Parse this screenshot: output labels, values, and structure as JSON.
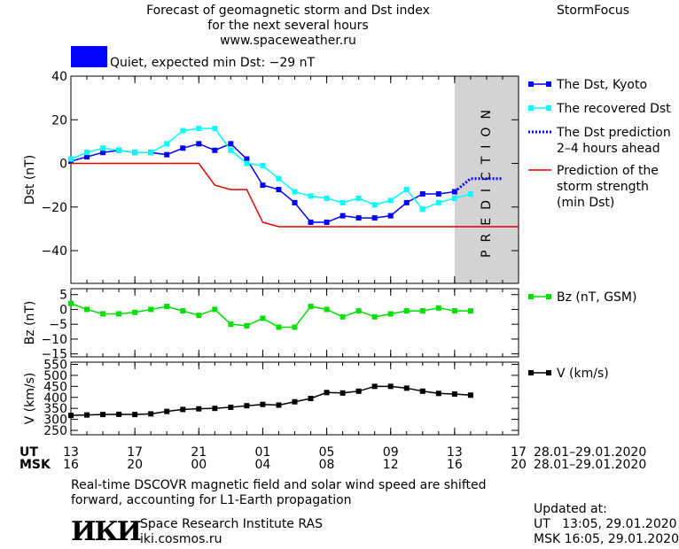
{
  "header": {
    "title_line1": "Forecast of geomagnetic storm and Dst index",
    "title_line2": "for the next several hours",
    "title_line3": "www.spaceweather.ru",
    "brand": "StormFocus",
    "status_text": "Quiet, expected min Dst: −29 nT",
    "status_color": "#0000ff"
  },
  "chart_data": [
    {
      "type": "line",
      "ylabel": "Dst (nT)",
      "ylim": [
        -55,
        40
      ],
      "yticks": [
        "40",
        "20",
        "0",
        "−20",
        "−40"
      ],
      "yticks_values": [
        40,
        20,
        0,
        -20,
        -40
      ],
      "xlim": [
        13,
        41
      ],
      "prediction_band": {
        "from": 37,
        "to": 41,
        "text": "PREDICTION",
        "color": "#d3d3d3"
      },
      "series": [
        {
          "name": "The Dst, Kyoto",
          "color": "#0000ff",
          "marker": "square",
          "x": [
            13,
            14,
            15,
            16,
            17,
            18,
            19,
            20,
            21,
            22,
            23,
            24,
            25,
            26,
            27,
            28,
            29,
            30,
            31,
            32,
            33,
            34,
            35,
            36,
            37
          ],
          "y": [
            1,
            3,
            5,
            6,
            5,
            5,
            4,
            7,
            9,
            6,
            9,
            2,
            -10,
            -12,
            -18,
            -27,
            -27,
            -24,
            -25,
            -25,
            -24,
            -18,
            -14,
            -14,
            -13
          ]
        },
        {
          "name": "The recovered Dst",
          "color": "#00ffff",
          "marker": "square",
          "x": [
            13,
            14,
            15,
            16,
            17,
            18,
            19,
            20,
            21,
            22,
            23,
            24,
            25,
            26,
            27,
            28,
            29,
            30,
            31,
            32,
            33,
            34,
            35,
            36,
            37,
            38
          ],
          "y": [
            2,
            5,
            7,
            6,
            5,
            5,
            9,
            15,
            16,
            16,
            6,
            0,
            -1,
            -7,
            -13,
            -15,
            -16,
            -18,
            -16,
            -19,
            -17,
            -12,
            -21,
            -18,
            -16,
            -14
          ]
        },
        {
          "name": "The Dst prediction 2–4 hours ahead",
          "legend_lines": [
            "The Dst prediction",
            "2–4 hours ahead"
          ],
          "color": "#0000ff",
          "dotted": true,
          "x": [
            37,
            38,
            39,
            40
          ],
          "y": [
            -13,
            -7,
            -7,
            -7
          ]
        },
        {
          "name": "Prediction of the storm strength (min Dst)",
          "legend_lines": [
            "Prediction of the",
            "storm strength",
            "(min Dst)"
          ],
          "color": "#e00000",
          "step": true,
          "x": [
            13,
            21,
            22,
            23,
            24,
            25,
            26,
            41
          ],
          "y": [
            0,
            0,
            -10,
            -12,
            -12,
            -27,
            -29,
            -29
          ]
        }
      ]
    },
    {
      "type": "line",
      "ylabel": "Bz (nT)",
      "ylim": [
        -16,
        7
      ],
      "yticks": [
        "5",
        "0",
        "−5",
        "−10",
        "−15"
      ],
      "yticks_values": [
        5,
        0,
        -5,
        -10,
        -15
      ],
      "xlim": [
        13,
        41
      ],
      "series": [
        {
          "name": "Bz (nT, GSM)",
          "color": "#00e000",
          "marker": "square",
          "x": [
            13,
            14,
            15,
            16,
            17,
            18,
            19,
            20,
            21,
            22,
            23,
            24,
            25,
            26,
            27,
            28,
            29,
            30,
            31,
            32,
            33,
            34,
            35,
            36,
            37,
            38
          ],
          "y": [
            2,
            0,
            -1.5,
            -1.5,
            -1,
            0,
            1,
            -0.5,
            -2,
            0,
            -5,
            -5.5,
            -3,
            -6,
            -6,
            1,
            0,
            -2.5,
            -0.5,
            -2.5,
            -1.5,
            -0.5,
            -0.5,
            0.5,
            -0.5,
            -0.5
          ]
        }
      ]
    },
    {
      "type": "line",
      "ylabel": "V (km/s)",
      "ylim": [
        230,
        560
      ],
      "yticks": [
        "550",
        "500",
        "450",
        "400",
        "350",
        "300",
        "250"
      ],
      "yticks_values": [
        550,
        500,
        450,
        400,
        350,
        300,
        250
      ],
      "xlim": [
        13,
        41
      ],
      "series": [
        {
          "name": "V (km/s)",
          "color": "#000000",
          "marker": "square",
          "x": [
            13,
            14,
            15,
            16,
            17,
            18,
            19,
            20,
            21,
            22,
            23,
            24,
            25,
            26,
            27,
            28,
            29,
            30,
            31,
            32,
            33,
            34,
            35,
            36,
            37,
            38
          ],
          "y": [
            318,
            320,
            322,
            323,
            322,
            325,
            336,
            345,
            348,
            350,
            355,
            362,
            368,
            365,
            380,
            395,
            422,
            420,
            428,
            450,
            450,
            442,
            428,
            418,
            415,
            410
          ]
        }
      ]
    }
  ],
  "axis_x": {
    "ut_label": "UT",
    "msk_label": "MSK",
    "ut_ticks": [
      "13",
      "17",
      "21",
      "01",
      "05",
      "09",
      "13",
      "17"
    ],
    "msk_ticks": [
      "16",
      "20",
      "00",
      "04",
      "08",
      "12",
      "16",
      "20"
    ],
    "tick_values": [
      13,
      17,
      21,
      25,
      29,
      33,
      37,
      41
    ],
    "ut_date": "28.01–29.01.2020",
    "msk_date": "28.01–29.01.2020"
  },
  "footer": {
    "note_line1": "Real-time DSCOVR magnetic field and solar wind speed are shifted",
    "note_line2": "forward, accounting for L1-Earth propagation",
    "logo_text": "ИКИ",
    "org_name": "Space Research Institute RAS",
    "org_url": "iki.cosmos.ru",
    "updated_label": "Updated at:",
    "updated_ut": "UT   13:05, 29.01.2020",
    "updated_msk": "MSK 16:05, 29.01.2020"
  }
}
